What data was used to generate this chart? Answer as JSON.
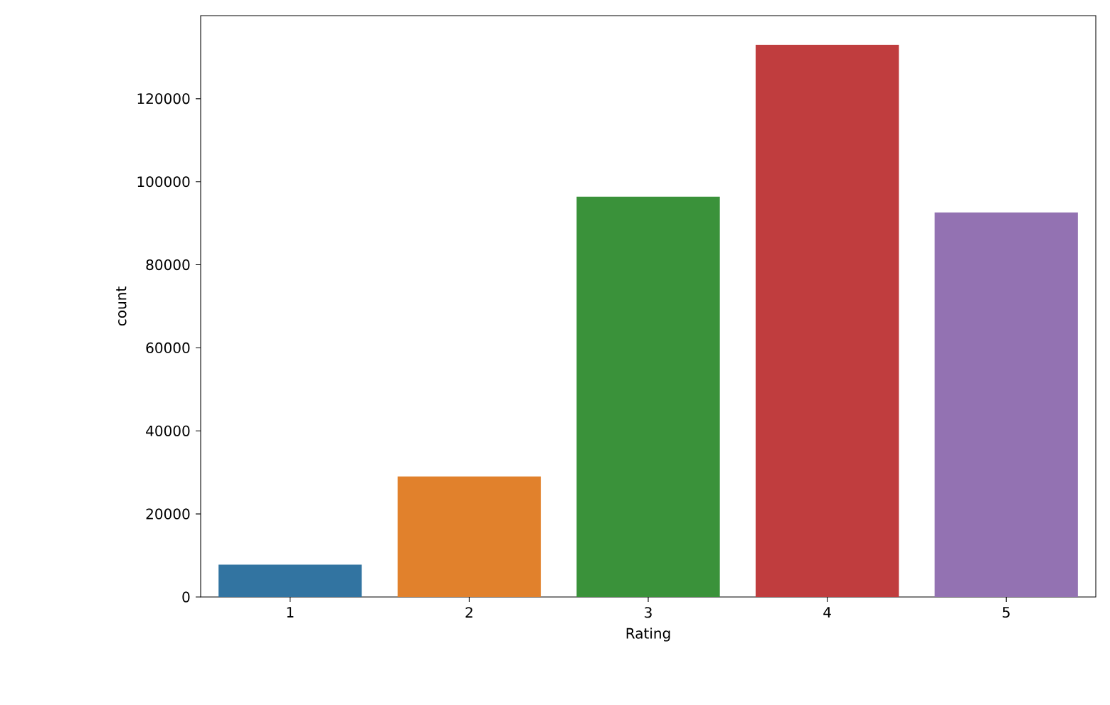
{
  "chart_data": {
    "type": "bar",
    "xlabel": "Rating",
    "ylabel": "count",
    "categories": [
      "1",
      "2",
      "3",
      "4",
      "5"
    ],
    "values": [
      7800,
      29000,
      96400,
      133000,
      92600
    ],
    "colors": [
      "#3274a1",
      "#e1812c",
      "#3a923a",
      "#c03d3e",
      "#9372b2"
    ],
    "ylim": [
      0,
      140000
    ],
    "yticks": [
      0,
      20000,
      40000,
      60000,
      80000,
      100000,
      120000
    ],
    "grid": false
  }
}
